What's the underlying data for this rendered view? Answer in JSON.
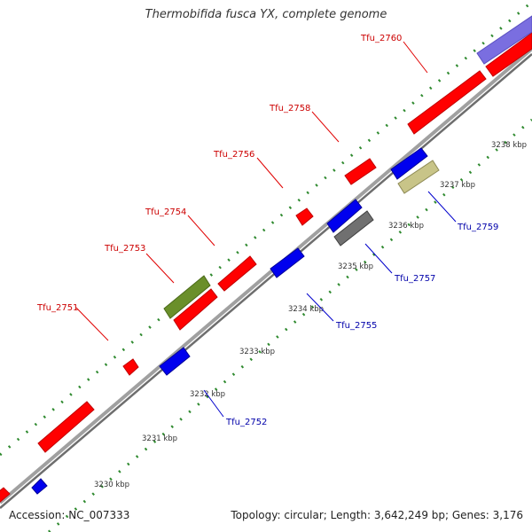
{
  "header": {
    "title": "Thermobifida fusca YX, complete genome"
  },
  "footer": {
    "accession": "Accession: NC_007333",
    "info": "Topology: circular; Length: 3,642,249 bp; Genes: 3,176"
  },
  "colors": {
    "forward_gene": "#ff0000",
    "reverse_gene": "#0000ee",
    "forward_label": "#cc0000",
    "reverse_label": "#0000aa",
    "tick": "#2f8a2f",
    "backbone": "#8c8c8c"
  },
  "ticks": [
    "3230 kbp",
    "3231 kbp",
    "3232 kbp",
    "3233 kbp",
    "3234 kbp",
    "3235 kbp",
    "3236 kbp",
    "3237 kbp",
    "3238 kbp"
  ],
  "genes_forward": [
    {
      "label": "Tfu_2751"
    },
    {
      "label": "Tfu_2753"
    },
    {
      "label": "Tfu_2754"
    },
    {
      "label": "Tfu_2756"
    },
    {
      "label": "Tfu_2758"
    },
    {
      "label": "Tfu_2760"
    }
  ],
  "genes_reverse": [
    {
      "label": "Tfu_2752"
    },
    {
      "label": "Tfu_2755"
    },
    {
      "label": "Tfu_2757"
    },
    {
      "label": "Tfu_2759"
    }
  ]
}
